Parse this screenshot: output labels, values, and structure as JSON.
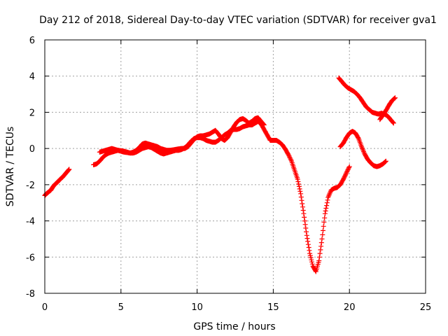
{
  "chart_data": {
    "type": "scatter",
    "title": "Day 212 of 2018, Sidereal Day-to-day VTEC variation (SDTVAR) for receiver gva1",
    "xlabel": "GPS time / hours",
    "ylabel": "SDTVAR / TECUs",
    "xlim": [
      0,
      25
    ],
    "ylim": [
      -8,
      6
    ],
    "x_ticks": [
      0,
      5,
      10,
      15,
      20,
      25
    ],
    "y_ticks": [
      -8,
      -6,
      -4,
      -2,
      0,
      2,
      4,
      6
    ],
    "x_tick_labels": [
      "0",
      "5",
      "10",
      "15",
      "20",
      "25"
    ],
    "y_tick_labels": [
      "-8",
      "-6",
      "-4",
      "-2",
      "0",
      "2",
      "4",
      "6"
    ],
    "grid": true,
    "marker": "plus",
    "series": [
      {
        "color": "#ff0000",
        "points": [
          [
            0.0,
            -2.6
          ],
          [
            0.1,
            -2.5
          ],
          [
            0.25,
            -2.4
          ],
          [
            0.4,
            -2.3
          ],
          [
            0.55,
            -2.1
          ],
          [
            0.7,
            -1.95
          ],
          [
            0.85,
            -1.85
          ],
          [
            1.0,
            -1.7
          ],
          [
            1.15,
            -1.6
          ],
          [
            1.3,
            -1.45
          ],
          [
            1.45,
            -1.3
          ],
          [
            1.6,
            -1.15
          ]
        ]
      },
      {
        "color": "#ff0000",
        "points": [
          [
            3.2,
            -0.9
          ],
          [
            3.4,
            -0.85
          ],
          [
            3.6,
            -0.7
          ],
          [
            3.8,
            -0.5
          ],
          [
            4.0,
            -0.35
          ],
          [
            4.2,
            -0.25
          ],
          [
            4.4,
            -0.2
          ],
          [
            4.6,
            -0.15
          ],
          [
            4.8,
            -0.1
          ],
          [
            5.0,
            -0.12
          ],
          [
            5.2,
            -0.15
          ],
          [
            5.4,
            -0.2
          ],
          [
            5.6,
            -0.25
          ],
          [
            5.8,
            -0.25
          ],
          [
            6.0,
            -0.2
          ],
          [
            6.2,
            -0.1
          ],
          [
            6.4,
            0.0
          ],
          [
            6.6,
            0.05
          ],
          [
            6.8,
            0.1
          ],
          [
            7.0,
            0.05
          ],
          [
            7.2,
            -0.05
          ],
          [
            7.4,
            -0.15
          ],
          [
            7.6,
            -0.25
          ],
          [
            7.8,
            -0.3
          ],
          [
            8.0,
            -0.25
          ],
          [
            8.2,
            -0.2
          ],
          [
            8.4,
            -0.15
          ],
          [
            8.6,
            -0.1
          ],
          [
            8.8,
            -0.1
          ],
          [
            9.0,
            -0.05
          ],
          [
            9.2,
            0.05
          ],
          [
            9.4,
            0.2
          ],
          [
            9.6,
            0.4
          ],
          [
            9.8,
            0.55
          ],
          [
            10.0,
            0.6
          ],
          [
            10.2,
            0.6
          ],
          [
            10.4,
            0.55
          ],
          [
            10.6,
            0.45
          ],
          [
            10.8,
            0.4
          ],
          [
            11.0,
            0.35
          ],
          [
            11.2,
            0.35
          ],
          [
            11.4,
            0.45
          ],
          [
            11.6,
            0.6
          ],
          [
            11.8,
            0.75
          ],
          [
            12.0,
            0.85
          ],
          [
            12.2,
            1.0
          ],
          [
            12.4,
            1.05
          ],
          [
            12.6,
            1.05
          ],
          [
            12.8,
            1.1
          ],
          [
            13.0,
            1.2
          ],
          [
            13.2,
            1.25
          ],
          [
            13.4,
            1.3
          ],
          [
            13.6,
            1.3
          ],
          [
            13.8,
            1.4
          ],
          [
            14.0,
            1.5
          ],
          [
            14.2,
            1.35
          ],
          [
            14.4,
            1.05
          ],
          [
            14.6,
            0.75
          ],
          [
            14.8,
            0.45
          ],
          [
            15.0,
            0.45
          ],
          [
            15.2,
            0.45
          ],
          [
            15.4,
            0.35
          ],
          [
            15.6,
            0.2
          ],
          [
            15.8,
            -0.05
          ],
          [
            16.0,
            -0.35
          ],
          [
            16.2,
            -0.7
          ],
          [
            16.4,
            -1.2
          ],
          [
            16.6,
            -1.7
          ],
          [
            16.8,
            -2.5
          ],
          [
            17.0,
            -3.6
          ],
          [
            17.2,
            -4.8
          ],
          [
            17.4,
            -5.8
          ],
          [
            17.6,
            -6.5
          ],
          [
            17.8,
            -6.8
          ],
          [
            18.0,
            -6.2
          ],
          [
            18.2,
            -5.0
          ],
          [
            18.4,
            -3.6
          ],
          [
            18.6,
            -2.7
          ],
          [
            18.8,
            -2.3
          ],
          [
            19.0,
            -2.2
          ],
          [
            19.2,
            -2.15
          ],
          [
            19.4,
            -2.0
          ],
          [
            19.6,
            -1.7
          ],
          [
            19.8,
            -1.35
          ],
          [
            20.0,
            -1.0
          ]
        ]
      },
      {
        "color": "#ff0000",
        "points": [
          [
            3.6,
            -0.2
          ],
          [
            3.8,
            -0.15
          ],
          [
            4.0,
            -0.1
          ],
          [
            4.2,
            -0.05
          ],
          [
            4.4,
            0.0
          ],
          [
            4.6,
            -0.05
          ],
          [
            4.8,
            -0.1
          ],
          [
            5.0,
            -0.15
          ],
          [
            5.2,
            -0.2
          ],
          [
            5.4,
            -0.22
          ],
          [
            5.6,
            -0.25
          ],
          [
            5.8,
            -0.2
          ],
          [
            6.0,
            -0.1
          ],
          [
            6.2,
            0.05
          ],
          [
            6.4,
            0.25
          ],
          [
            6.6,
            0.3
          ],
          [
            6.8,
            0.25
          ],
          [
            7.0,
            0.2
          ],
          [
            7.2,
            0.15
          ],
          [
            7.4,
            0.1
          ],
          [
            7.6,
            0.0
          ],
          [
            7.8,
            -0.05
          ],
          [
            8.0,
            -0.1
          ],
          [
            8.2,
            -0.1
          ],
          [
            8.4,
            -0.08
          ],
          [
            8.6,
            -0.05
          ],
          [
            8.8,
            -0.02
          ],
          [
            9.0,
            0.0
          ],
          [
            9.2,
            0.0
          ],
          [
            9.4,
            0.1
          ],
          [
            9.6,
            0.3
          ],
          [
            9.8,
            0.5
          ],
          [
            10.0,
            0.65
          ],
          [
            10.2,
            0.7
          ],
          [
            10.4,
            0.7
          ],
          [
            10.6,
            0.75
          ],
          [
            10.8,
            0.8
          ],
          [
            11.0,
            0.9
          ],
          [
            11.2,
            1.0
          ],
          [
            11.4,
            0.8
          ],
          [
            11.6,
            0.55
          ],
          [
            11.8,
            0.45
          ],
          [
            12.0,
            0.6
          ],
          [
            12.2,
            0.9
          ],
          [
            12.4,
            1.2
          ],
          [
            12.6,
            1.45
          ],
          [
            12.8,
            1.6
          ],
          [
            13.0,
            1.65
          ],
          [
            13.2,
            1.55
          ],
          [
            13.4,
            1.4
          ],
          [
            13.6,
            1.5
          ],
          [
            13.8,
            1.65
          ],
          [
            14.0,
            1.7
          ],
          [
            14.2,
            1.5
          ],
          [
            14.4,
            1.3
          ]
        ]
      },
      {
        "color": "#ff0000",
        "points": [
          [
            19.4,
            0.1
          ],
          [
            19.6,
            0.3
          ],
          [
            19.8,
            0.6
          ],
          [
            20.0,
            0.85
          ],
          [
            20.2,
            0.95
          ],
          [
            20.4,
            0.85
          ],
          [
            20.6,
            0.55
          ],
          [
            20.8,
            0.1
          ],
          [
            21.0,
            -0.3
          ],
          [
            21.2,
            -0.6
          ],
          [
            21.4,
            -0.8
          ],
          [
            21.6,
            -0.95
          ],
          [
            21.8,
            -1.0
          ],
          [
            22.0,
            -0.95
          ],
          [
            22.2,
            -0.85
          ],
          [
            22.4,
            -0.7
          ]
        ]
      },
      {
        "color": "#ff0000",
        "points": [
          [
            19.3,
            3.9
          ],
          [
            19.5,
            3.7
          ],
          [
            19.7,
            3.5
          ],
          [
            19.9,
            3.35
          ],
          [
            20.1,
            3.25
          ],
          [
            20.3,
            3.15
          ],
          [
            20.5,
            3.0
          ],
          [
            20.7,
            2.8
          ],
          [
            20.9,
            2.55
          ],
          [
            21.1,
            2.3
          ],
          [
            21.3,
            2.15
          ],
          [
            21.5,
            2.0
          ],
          [
            21.7,
            1.95
          ],
          [
            21.9,
            1.9
          ],
          [
            22.1,
            1.95
          ],
          [
            22.3,
            1.9
          ],
          [
            22.5,
            1.8
          ],
          [
            22.7,
            1.6
          ],
          [
            22.9,
            1.4
          ]
        ]
      },
      {
        "color": "#ff0000",
        "points": [
          [
            22.0,
            1.6
          ],
          [
            22.2,
            1.85
          ],
          [
            22.4,
            2.1
          ],
          [
            22.6,
            2.4
          ],
          [
            22.8,
            2.65
          ],
          [
            23.0,
            2.8
          ]
        ]
      }
    ]
  }
}
